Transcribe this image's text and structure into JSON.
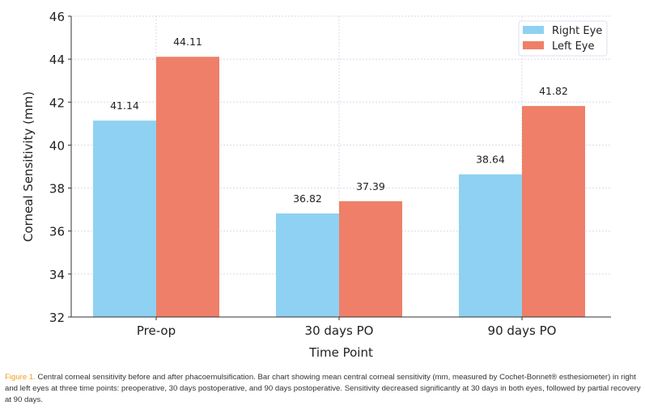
{
  "chart_data": {
    "type": "bar",
    "categories": [
      "Pre-op",
      "30 days PO",
      "90 days PO"
    ],
    "series": [
      {
        "name": "Right Eye",
        "values": [
          41.14,
          36.82,
          38.64
        ],
        "color": "#8fd1f2"
      },
      {
        "name": "Left Eye",
        "values": [
          44.11,
          37.39,
          41.82
        ],
        "color": "#ef7f68"
      }
    ],
    "data_labels": [
      [
        "41.14",
        "36.82",
        "38.64"
      ],
      [
        "44.11",
        "37.39",
        "41.82"
      ]
    ],
    "xlabel": "Time Point",
    "ylabel": "Corneal Sensitivity (mm)",
    "ylim": [
      32,
      46
    ],
    "yticks": [
      "32",
      "34",
      "36",
      "38",
      "40",
      "42",
      "44",
      "46"
    ],
    "grid": true,
    "legend_placement": "top-right"
  },
  "caption": {
    "label": "Figure 1.",
    "text": " Central corneal sensitivity before and after phacoemulsification. Bar chart showing mean central corneal sensitivity (mm, measured by Cochet-Bonnet® esthesiometer) in right and left eyes at three time points: preoperative, 30 days postoperative, and 90 days postoperative. Sensitivity decreased significantly at 30 days in both eyes, followed by partial recovery at 90 days."
  }
}
